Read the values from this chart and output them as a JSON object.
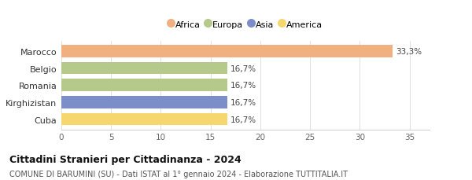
{
  "categories": [
    "Cuba",
    "Kirghizistan",
    "Romania",
    "Belgio",
    "Marocco"
  ],
  "values": [
    16.7,
    16.7,
    16.7,
    16.7,
    33.3
  ],
  "bar_colors": [
    "#f5d76e",
    "#7b8ec8",
    "#b5c98a",
    "#b5c98a",
    "#f0b080"
  ],
  "value_labels": [
    "16,7%",
    "16,7%",
    "16,7%",
    "16,7%",
    "33,3%"
  ],
  "legend_items": [
    {
      "label": "Africa",
      "color": "#f0b080"
    },
    {
      "label": "Europa",
      "color": "#b5c98a"
    },
    {
      "label": "Asia",
      "color": "#7b8ec8"
    },
    {
      "label": "America",
      "color": "#f5d76e"
    }
  ],
  "xlim": [
    0,
    37
  ],
  "xticks": [
    0,
    5,
    10,
    15,
    20,
    25,
    30,
    35
  ],
  "title": "Cittadini Stranieri per Cittadinanza - 2024",
  "subtitle": "COMUNE DI BARUMINI (SU) - Dati ISTAT al 1° gennaio 2024 - Elaborazione TUTTITALIA.IT",
  "background_color": "#ffffff",
  "bar_height": 0.72,
  "value_label_fontsize": 7.5,
  "ytick_fontsize": 8,
  "xtick_fontsize": 7.5,
  "title_fontsize": 9,
  "subtitle_fontsize": 7,
  "legend_fontsize": 8
}
